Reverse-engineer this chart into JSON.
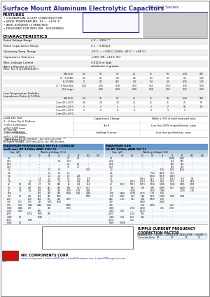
{
  "title_bold": "Surface Mount Aluminum Electrolytic Capacitors",
  "title_series": "NACEW Series",
  "header_color": "#2B2B8B",
  "bg_color": "#FFFFFF",
  "features": [
    "CYLINDRICAL V-CHIP CONSTRUCTION",
    "WIDE TEMPERATURE -55 ~ +105°C",
    "ANTI-SOLVENT (3 MINUTES)",
    "DESIGNED FOR REFLOW   SOLDERING"
  ],
  "char_data": [
    [
      "Rated Voltage Range",
      "4 V ~ 100V **"
    ],
    [
      "Rated Capacitance Range",
      "0.1 ~ 6,800μF"
    ],
    [
      "Operating Temp. Range",
      "-55°C ~ +105°C (100V: -40°C ~ +85°C)"
    ],
    [
      "Capacitance Tolerance",
      "±20% (M), ±10% (K)*"
    ],
    [
      "Max. Leakage Current\nAfter 2 Minutes @ 20°C",
      "0.01CV or 3μA,\nwhichever is greater"
    ]
  ],
  "tan_label": "Max. Tan δ @120Hz&20°C",
  "tan_headers": [
    "6.3",
    "10",
    "16",
    "25",
    "35",
    "50",
    "6.3S",
    "100"
  ],
  "tan_rows": [
    [
      "W.V.(V.S)",
      "6.3",
      "10",
      "16",
      "25",
      "35",
      "50",
      "6.3S",
      "100"
    ],
    [
      "4 ~ 6 (V4S)",
      "0.3",
      "0.1",
      "0.3",
      "0.1",
      "0.1",
      "0.1",
      "0.1",
      "1.25"
    ],
    [
      "6.3 (V6S)",
      "0",
      "0.1",
      "265",
      "0.4",
      "0.4",
      "0.5",
      "0.76",
      "1.25"
    ],
    [
      "4 ~ 6 (less Dia.",
      "0.26",
      "0.26",
      "0.18",
      "0.14",
      "0.12",
      "0.10",
      "0.10",
      "0.10"
    ],
    [
      "8 & larger",
      "",
      "0.26",
      "0.24",
      "0.20",
      "0.16",
      "0.14",
      "0.12",
      "0.10"
    ]
  ],
  "lts_label": "Low Temperature Stability\nImpedance Ratio @ 120Hz",
  "lts_rows": [
    [
      "W.V.(V.S)",
      "6.3",
      "10",
      "16",
      "25",
      "35",
      "50",
      "6.3S",
      "100"
    ],
    [
      "2 ms GY<-20°C",
      "4.0",
      "1.0",
      "1.0",
      "25",
      "25",
      "25",
      "30",
      "50"
    ],
    [
      "2 ms GY<-25°C",
      "3",
      "2",
      "2",
      "2",
      "2",
      "2",
      "50",
      "50"
    ],
    [
      "2 ms GY<-30°C",
      "2",
      "2",
      "4",
      "4",
      "3",
      "3",
      "3",
      ""
    ],
    [
      "2 ms GY<-35°C",
      "",
      "",
      "",
      "",
      "",
      "",
      "",
      ""
    ]
  ],
  "ll_left1": "4 ~ 6.3mm Dia. & 10x4mm\n+105°C 1,000 hours\n+85°C 2,000 hours\n+65°C 4,000 hours",
  "ll_left2": "8+ Mm Dia.\n+105°C 2,000 hours\n+85°C 4,000 hours\n+65°C 8,000 hours",
  "ll_right": [
    [
      "Capacitance Change",
      "Within ± 20% of initial measured value"
    ],
    [
      "Tan δ",
      "Less than 200% of specified max. value"
    ],
    [
      "Leakage Current",
      "Less than specified max. value"
    ]
  ],
  "footnote1": "* Optional ± 10% (K) tolerance - see case size chart.  **",
  "footnote2": "For higher voltages, 250V and 400V, see SMC-B series.",
  "rip_title": "MAXIMUM PERMISSIBLE RIPPLE CURRENT\n(mA rms AT 120Hz AND 105°C)",
  "esr_title": "MAXIMUM ESR\n(Ω AT 120Hz AND 20°C)",
  "rip_cap_col": "Cap. (μF)",
  "rip_wv_label": "Working Voltage (V.S)",
  "rip_cols": [
    "4.5",
    "6.3",
    "10",
    "16",
    "25",
    "35",
    "50",
    "63S",
    "100"
  ],
  "esr_cols": [
    "4.5",
    "6.3",
    "10",
    "16",
    "25",
    "35",
    "50",
    "63S",
    "100"
  ],
  "rip_rows": [
    [
      "0.1",
      "-",
      "-",
      "-",
      "-",
      "-",
      "0.7",
      "0.7",
      "-"
    ],
    [
      "0.22",
      "-",
      "-",
      "-",
      "-",
      "1.6",
      "1.81",
      "-",
      "-"
    ],
    [
      "0.33",
      "-",
      "-",
      "-",
      "-",
      "-",
      "2.5",
      "2.5",
      "-"
    ],
    [
      "0.47",
      "-",
      "-",
      "-",
      "-",
      "-",
      "3.5",
      "3.5",
      "-"
    ],
    [
      "1.0",
      "-",
      "-",
      "-",
      "1.0",
      "1.0",
      "",
      "",
      "1.00"
    ],
    [
      "2.2",
      "-",
      "-",
      "-",
      "1.1",
      "1.1",
      "1.4",
      "",
      ""
    ],
    [
      "3.3",
      "-",
      "-",
      "-",
      "1.5",
      "1.5",
      "1.9",
      "249",
      ""
    ],
    [
      "4.7",
      "-",
      "-",
      "1.9",
      "1.4",
      "100",
      "1.9",
      "1.60",
      "279"
    ],
    [
      "10",
      "-",
      "1.6",
      "3.7",
      "200",
      "2.1",
      "3.4",
      "294",
      "530"
    ],
    [
      "22",
      "0.5",
      "265",
      "3.7",
      "80",
      "140",
      "82",
      "469",
      "614"
    ],
    [
      "33",
      "2.7",
      "280",
      "186",
      "143",
      "188",
      "150",
      "1.53",
      "1.53"
    ],
    [
      "47",
      "3.8",
      "4.1",
      "168",
      "488",
      "480",
      "3960",
      "1.99",
      "2460"
    ],
    [
      "100",
      "-",
      "-",
      "350",
      "480",
      "490",
      "1760",
      "1.99",
      "2460"
    ],
    [
      "150",
      "5.0",
      "482",
      "148",
      "240",
      "1005",
      "-",
      "",
      "5690"
    ],
    [
      "220",
      "-",
      "1.05",
      "148",
      "175",
      "206",
      "2047",
      "",
      ""
    ],
    [
      "330",
      "1.05",
      "1.95",
      "1.95",
      "1095",
      "3800",
      "-",
      "",
      ""
    ],
    [
      "470",
      "2.93",
      "2185",
      "2380",
      "3800",
      "-",
      "5080",
      "",
      ""
    ],
    [
      "1000",
      "2380",
      "276",
      "-",
      "490",
      "-",
      "8350",
      "",
      ""
    ],
    [
      "1500",
      "2310",
      "-",
      "500",
      "-",
      "-",
      "-",
      "",
      ""
    ],
    [
      "2200",
      "-",
      "10.50",
      "6800",
      "800",
      "-",
      "-",
      "",
      ""
    ],
    [
      "3300",
      "5.0",
      "-",
      "6840",
      "-",
      "-",
      "-",
      "",
      ""
    ],
    [
      "4700",
      "-",
      "6800",
      "-",
      "-",
      "-",
      "-",
      "",
      ""
    ],
    [
      "6800",
      "6.0",
      "-",
      "-",
      "-",
      "-",
      "-",
      "",
      ""
    ]
  ],
  "esr_rows": [
    [
      "0.1",
      "-",
      "-",
      "-",
      "-",
      "-",
      "10000",
      "1000",
      "-"
    ],
    [
      "0.22",
      "-",
      "-",
      "-",
      "-",
      "-",
      "714",
      "500",
      "-"
    ],
    [
      "0.33",
      "-",
      "-",
      "-",
      "-",
      "-",
      "500",
      "404",
      "-"
    ],
    [
      "0.47",
      "-",
      "-",
      "-",
      "-",
      "-",
      "303",
      "404",
      "-"
    ],
    [
      "1.0",
      "-",
      "-",
      "-",
      "-",
      "1.00",
      "1.99",
      "1450",
      "-"
    ],
    [
      "2.2",
      "-",
      "-",
      "-",
      "7.5.4",
      "500.5",
      "75.4",
      "",
      "-"
    ],
    [
      "3.3",
      "-",
      "-",
      "-",
      "150.8",
      "600.8",
      "159.8",
      "",
      "-"
    ],
    [
      "4.7",
      "-",
      "-",
      "189.6",
      "62.5",
      "89.8",
      "109.0",
      "19.0",
      "8.8"
    ],
    [
      "10",
      "-",
      "295.0",
      "219.2",
      "19.8",
      "18.6",
      "19.0",
      "19.8",
      "18.8"
    ],
    [
      "22",
      "130.1",
      "110.1",
      "147.0",
      "7.094",
      "6.048",
      "5.108",
      "8.005",
      "0.003"
    ],
    [
      "33",
      "-",
      "6.47",
      "7.06",
      "0.80",
      "4.385",
      "0.53",
      "4.246",
      "3.53"
    ],
    [
      "47",
      "-",
      "3.940",
      "-",
      "1.940",
      "1.988",
      "",
      "2.099",
      "1.85"
    ],
    [
      "100",
      "3.960",
      "2.078",
      "2.171",
      "1.17",
      "1.55",
      "-",
      "",
      "-"
    ],
    [
      "150",
      "1.981",
      "1.53",
      "1.48",
      "1.071",
      "1.080",
      "0.901",
      "0.081",
      ""
    ],
    [
      "220",
      "1.23",
      "1.23",
      "1.08",
      "0.863",
      "0.72",
      "-",
      "",
      ""
    ],
    [
      "330",
      "-",
      "-",
      "0.469",
      "-",
      "0.409",
      "-",
      "-",
      "-"
    ],
    [
      "470",
      "-",
      "-",
      "0.19",
      "0.182",
      "-",
      "0.62",
      "",
      ""
    ],
    [
      "1000",
      "-",
      "0.415",
      "0.183",
      "-",
      "0.15",
      "0.293",
      "",
      ""
    ],
    [
      "1500",
      "0.31",
      "-",
      "0.273",
      "-",
      "-",
      "-",
      "",
      ""
    ],
    [
      "2200",
      "-",
      "-0.14",
      "0.54",
      "-",
      "-",
      "-",
      "",
      ""
    ],
    [
      "3300",
      "0.14",
      "0.11",
      "0.32",
      "-",
      "-",
      "-",
      "",
      ""
    ],
    [
      "4700",
      "-",
      "0.11",
      "-",
      "-",
      "-",
      "-",
      "",
      ""
    ],
    [
      "6800",
      "0.0995",
      "-",
      "-",
      "-",
      "-",
      "-",
      "",
      ""
    ]
  ],
  "prec_title": "PRECAUTIONS",
  "prec_text": "Please review the notes on correct use safety and connections found on page 59(Vol 54\nor NIC's Electrolytic Capacitor catalog.\nOur Tech's at www.niccomp.com/precautions\nIf in doubt or considering please review your specific application - access details and\nNIC's technical support email: preng@niccomp.com",
  "freq_title": "RIPPLE CURRENT FREQUENCY\nCORRECTION FACTOR",
  "freq_headers": [
    "Frequency (Hz)",
    "f ≤ 1kH",
    "100 ≤ f ≤ 1K",
    "1K ≤ f ≤ 50K",
    "f ≥ 50K"
  ],
  "freq_row_label": "Correction Factor",
  "freq_values": [
    "0.8",
    "1.0",
    "1.8",
    "1.5"
  ],
  "nc_company": "NIC COMPONENTS CORP.",
  "nc_websites": "www.niccomp.com  |  www.IceESR.com  |  www.NIPasadores.com  |  www.SMTmagnetics.com"
}
